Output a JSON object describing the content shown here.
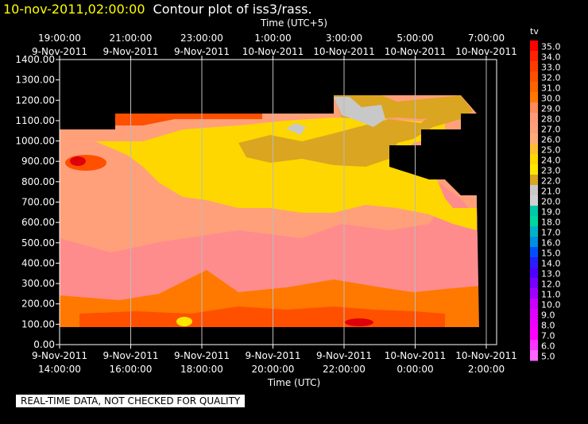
{
  "header": {
    "timestamp": "10-nov-2011,02:00:00",
    "title": "Contour plot of iss3/rass."
  },
  "chart_data": {
    "type": "heatmap",
    "x_top_title": "Time (UTC+5)",
    "x_bottom_title": "Time (UTC)",
    "y_ticks": [
      "0.00",
      "100.00",
      "200.00",
      "300.00",
      "400.00",
      "500.00",
      "600.00",
      "700.00",
      "800.00",
      "900.00",
      "1000.00",
      "1100.00",
      "1200.00",
      "1300.00",
      "1400.00"
    ],
    "ylim": [
      0,
      1400
    ],
    "x_top_ticks": [
      {
        "time": "19:00:00",
        "date": "9-Nov-2011"
      },
      {
        "time": "21:00:00",
        "date": "9-Nov-2011"
      },
      {
        "time": "23:00:00",
        "date": "9-Nov-2011"
      },
      {
        "time": "1:00:00",
        "date": "10-Nov-2011"
      },
      {
        "time": "3:00:00",
        "date": "10-Nov-2011"
      },
      {
        "time": "5:00:00",
        "date": "10-Nov-2011"
      },
      {
        "time": "7:00:00",
        "date": "10-Nov-2011"
      }
    ],
    "x_bottom_ticks": [
      {
        "date": "9-Nov-2011",
        "time": "14:00:00"
      },
      {
        "date": "9-Nov-2011",
        "time": "16:00:00"
      },
      {
        "date": "9-Nov-2011",
        "time": "18:00:00"
      },
      {
        "date": "9-Nov-2011",
        "time": "20:00:00"
      },
      {
        "date": "9-Nov-2011",
        "time": "22:00:00"
      },
      {
        "date": "10-Nov-2011",
        "time": "0:00:00"
      },
      {
        "date": "10-Nov-2011",
        "time": "2:00:00"
      }
    ],
    "colorbar": {
      "label": "tv",
      "levels": [
        "35.0",
        "34.0",
        "33.0",
        "32.0",
        "31.0",
        "30.0",
        "29.0",
        "28.0",
        "27.0",
        "26.0",
        "25.0",
        "24.0",
        "23.0",
        "22.0",
        "21.0",
        "20.0",
        "19.0",
        "18.0",
        "17.0",
        "16.0",
        "15.0",
        "14.0",
        "13.0",
        "12.0",
        "11.0",
        "10.0",
        "9.0",
        "8.0",
        "7.0",
        "6.0",
        "5.0"
      ],
      "colors": [
        "#ff0000",
        "#ff2200",
        "#ff3c00",
        "#ff5000",
        "#ff6400",
        "#ff7800",
        "#ff8a5a",
        "#ff9b78",
        "#ffa07a",
        "#ffac7a",
        "#ffbe32",
        "#ffd700",
        "#ffe600",
        "#daa520",
        "#c8c8c8",
        "#d0d0d0",
        "#00c8aa",
        "#00d7a0",
        "#00b4c8",
        "#0090e0",
        "#0050ff",
        "#2a1eff",
        "#5000ff",
        "#7800ff",
        "#a000ff",
        "#c800ff",
        "#e000ff",
        "#f000ff",
        "#ff00ff",
        "#ff33ff",
        "#ff66ff"
      ]
    },
    "grid": true
  },
  "footer": {
    "disclaimer": "REAL-TIME DATA, NOT CHECKED FOR QUALITY"
  }
}
